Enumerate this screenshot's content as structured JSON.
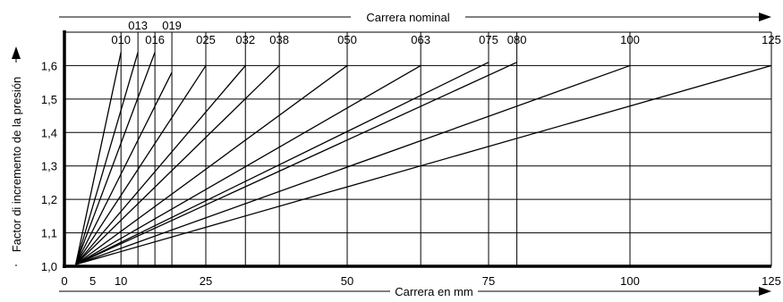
{
  "chart_data": {
    "type": "line",
    "title": "",
    "xlabel": "Carrera en mm",
    "ylabel": "Factor di incremento de la presión",
    "top_axis_label": "Carrera nominal",
    "xlim": [
      0,
      125
    ],
    "ylim": [
      1.0,
      1.7
    ],
    "x_ticks": [
      0,
      5,
      10,
      25,
      50,
      75,
      100,
      125
    ],
    "x_tick_labels": [
      "0",
      "5",
      "10",
      "25",
      "50",
      "75",
      "100",
      "125"
    ],
    "y_ticks": [
      1.0,
      1.1,
      1.2,
      1.3,
      1.4,
      1.5,
      1.6
    ],
    "y_tick_labels": [
      "1,0",
      "1,1",
      "1,2",
      "1,3",
      "1,4",
      "1,5",
      "1,6"
    ],
    "grid": true,
    "nominal_strokes": [
      {
        "label": "010",
        "stroke": 10,
        "x": [
          2,
          10
        ],
        "y": [
          1.0,
          1.64
        ]
      },
      {
        "label": "013",
        "stroke": 13,
        "x": [
          2,
          13
        ],
        "y": [
          1.0,
          1.64
        ]
      },
      {
        "label": "016",
        "stroke": 16,
        "x": [
          2,
          16
        ],
        "y": [
          1.0,
          1.64
        ]
      },
      {
        "label": "019",
        "stroke": 19,
        "x": [
          2,
          19
        ],
        "y": [
          1.0,
          1.58
        ]
      },
      {
        "label": "025",
        "stroke": 25,
        "x": [
          2,
          25
        ],
        "y": [
          1.0,
          1.6
        ]
      },
      {
        "label": "032",
        "stroke": 32,
        "x": [
          2,
          32
        ],
        "y": [
          1.0,
          1.6
        ]
      },
      {
        "label": "038",
        "stroke": 38,
        "x": [
          2,
          38
        ],
        "y": [
          1.0,
          1.6
        ]
      },
      {
        "label": "050",
        "stroke": 50,
        "x": [
          2,
          50
        ],
        "y": [
          1.0,
          1.6
        ]
      },
      {
        "label": "063",
        "stroke": 63,
        "x": [
          2,
          63
        ],
        "y": [
          1.0,
          1.6
        ]
      },
      {
        "label": "075",
        "stroke": 75,
        "x": [
          2,
          75
        ],
        "y": [
          1.0,
          1.61
        ]
      },
      {
        "label": "080",
        "stroke": 80,
        "x": [
          2,
          80
        ],
        "y": [
          1.0,
          1.61
        ]
      },
      {
        "label": "100",
        "stroke": 100,
        "x": [
          2,
          100
        ],
        "y": [
          1.0,
          1.6
        ]
      },
      {
        "label": "125",
        "stroke": 125,
        "x": [
          2,
          125
        ],
        "y": [
          1.0,
          1.6
        ]
      }
    ]
  }
}
